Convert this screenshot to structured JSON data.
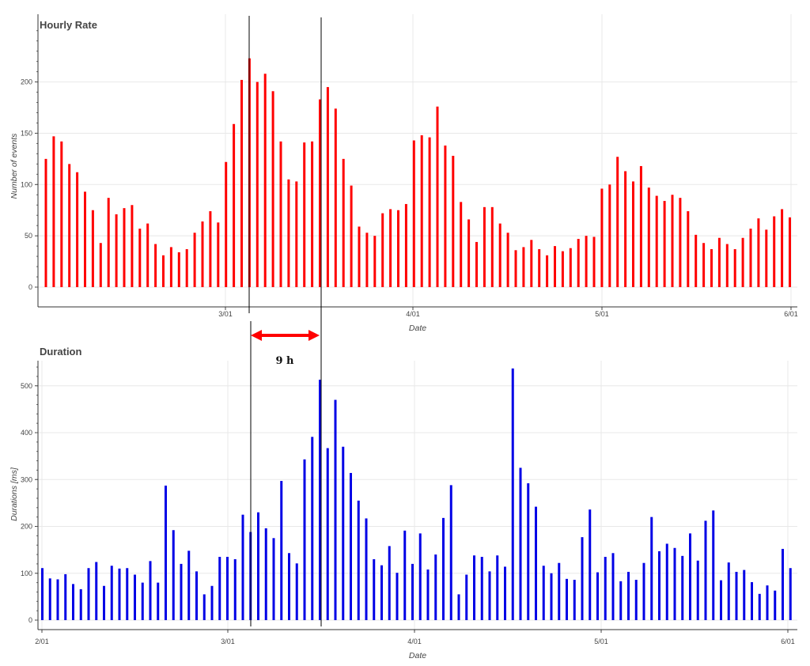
{
  "chart_data": [
    {
      "type": "bar",
      "title": "Hourly Rate",
      "xlabel": "Date",
      "ylabel": "Number of events",
      "color": "#ff0000",
      "ylim": [
        -10,
        250
      ],
      "yticks": [
        0,
        50,
        100,
        150,
        200
      ],
      "xticks": [
        "3/01",
        "4/01",
        "5/01",
        "6/01"
      ],
      "values": [
        125,
        147,
        142,
        120,
        112,
        93,
        75,
        43,
        87,
        71,
        77,
        80,
        57,
        62,
        42,
        31,
        39,
        34,
        37,
        53,
        64,
        74,
        63,
        122,
        159,
        202,
        223,
        200,
        208,
        191,
        142,
        105,
        103,
        141,
        142,
        183,
        195,
        174,
        125,
        99,
        59,
        53,
        50,
        72,
        76,
        75,
        81,
        143,
        148,
        146,
        176,
        138,
        128,
        83,
        66,
        44,
        78,
        78,
        62,
        53,
        36,
        39,
        46,
        37,
        31,
        40,
        35,
        38,
        47,
        50,
        49,
        96,
        100,
        127,
        113,
        103,
        118,
        97,
        89,
        84,
        90,
        87,
        74,
        51,
        43,
        37,
        48,
        42,
        37,
        48,
        57,
        67,
        56,
        69,
        76,
        68
      ]
    },
    {
      "type": "bar",
      "title": "Duration",
      "xlabel": "Date",
      "ylabel": "Durations [ms]",
      "color": "#0000e6",
      "ylim": [
        -10,
        550
      ],
      "yticks": [
        0,
        100,
        200,
        300,
        400,
        500
      ],
      "xticks": [
        "2/01",
        "3/01",
        "4/01",
        "5/01",
        "6/01"
      ],
      "values": [
        111,
        89,
        87,
        98,
        77,
        66,
        111,
        124,
        73,
        116,
        110,
        111,
        97,
        80,
        126,
        80,
        287,
        192,
        120,
        148,
        104,
        55,
        73,
        135,
        135,
        130,
        225,
        188,
        230,
        196,
        175,
        297,
        143,
        121,
        343,
        391,
        513,
        367,
        470,
        370,
        314,
        255,
        217,
        130,
        117,
        158,
        101,
        191,
        120,
        185,
        108,
        140,
        218,
        288,
        55,
        97,
        138,
        135,
        104,
        138,
        114,
        537,
        325,
        292,
        242,
        116,
        100,
        122,
        88,
        86,
        177,
        236,
        102,
        135,
        143,
        83,
        103,
        86,
        122,
        220,
        147,
        163,
        154,
        137,
        185,
        127,
        212,
        234,
        85,
        123,
        103,
        107,
        81,
        56,
        74,
        63,
        152,
        111
      ]
    }
  ],
  "annotation": {
    "label": "9 h",
    "line_color": "#000000",
    "arrow_color": "#ff0000"
  }
}
